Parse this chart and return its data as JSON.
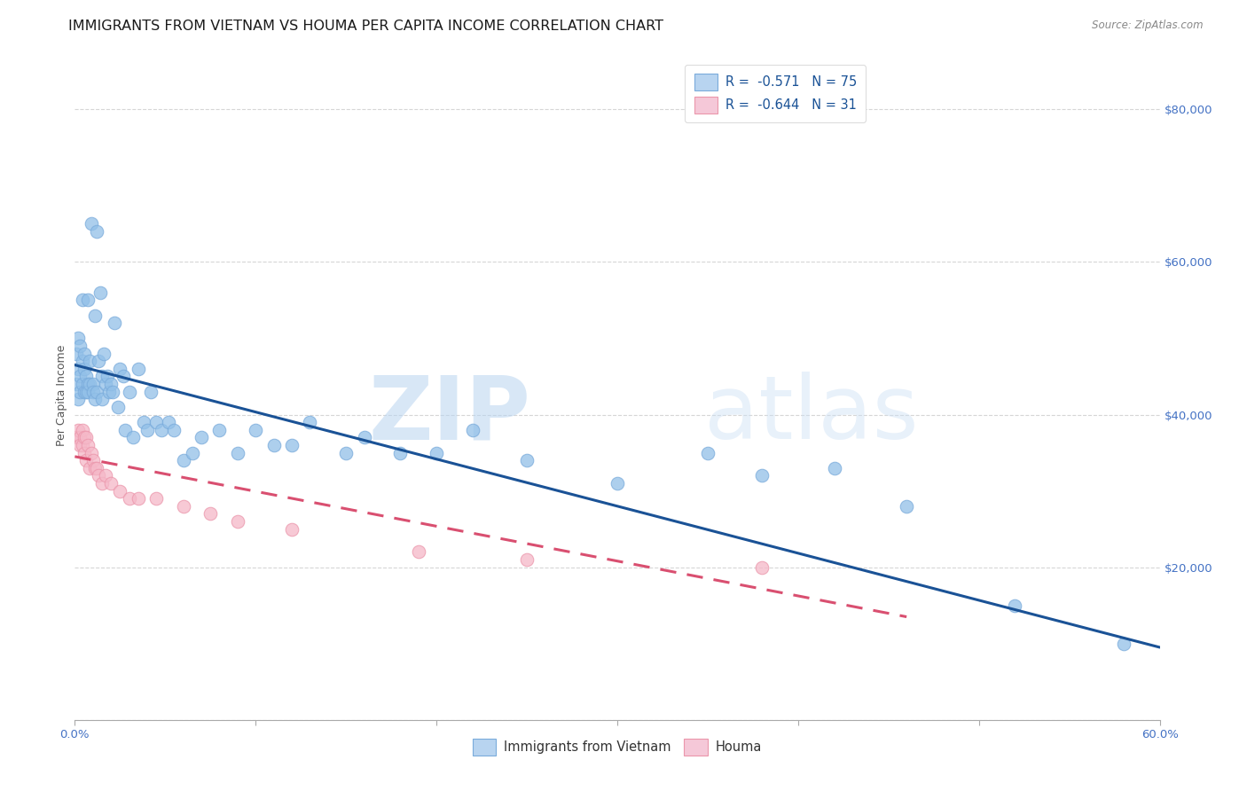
{
  "title": "IMMIGRANTS FROM VIETNAM VS HOUMA PER CAPITA INCOME CORRELATION CHART",
  "source": "Source: ZipAtlas.com",
  "ylabel": "Per Capita Income",
  "xlim": [
    0.0,
    0.6
  ],
  "ylim": [
    0,
    85000
  ],
  "ytick_positions": [
    0,
    20000,
    40000,
    60000,
    80000
  ],
  "ytick_labels": [
    "",
    "$20,000",
    "$40,000",
    "$60,000",
    "$80,000"
  ],
  "legend_labels": [
    "Immigrants from Vietnam",
    "Houma"
  ],
  "watermark_zip": "ZIP",
  "watermark_atlas": "atlas",
  "blue_scatter_x": [
    0.001,
    0.001,
    0.002,
    0.002,
    0.002,
    0.003,
    0.003,
    0.003,
    0.004,
    0.004,
    0.004,
    0.005,
    0.005,
    0.005,
    0.006,
    0.006,
    0.007,
    0.007,
    0.007,
    0.008,
    0.008,
    0.009,
    0.01,
    0.01,
    0.011,
    0.011,
    0.012,
    0.012,
    0.013,
    0.014,
    0.015,
    0.015,
    0.016,
    0.017,
    0.018,
    0.019,
    0.02,
    0.021,
    0.022,
    0.024,
    0.025,
    0.027,
    0.028,
    0.03,
    0.032,
    0.035,
    0.038,
    0.04,
    0.042,
    0.045,
    0.048,
    0.052,
    0.055,
    0.06,
    0.065,
    0.07,
    0.08,
    0.09,
    0.1,
    0.11,
    0.12,
    0.13,
    0.15,
    0.16,
    0.18,
    0.2,
    0.22,
    0.25,
    0.3,
    0.35,
    0.38,
    0.42,
    0.46,
    0.52,
    0.58
  ],
  "blue_scatter_y": [
    48000,
    44000,
    50000,
    46000,
    42000,
    49000,
    45000,
    43000,
    47000,
    44000,
    55000,
    43000,
    46000,
    48000,
    45000,
    43000,
    44000,
    55000,
    43000,
    44000,
    47000,
    65000,
    44000,
    43000,
    42000,
    53000,
    43000,
    64000,
    47000,
    56000,
    45000,
    42000,
    48000,
    44000,
    45000,
    43000,
    44000,
    43000,
    52000,
    41000,
    46000,
    45000,
    38000,
    43000,
    37000,
    46000,
    39000,
    38000,
    43000,
    39000,
    38000,
    39000,
    38000,
    34000,
    35000,
    37000,
    38000,
    35000,
    38000,
    36000,
    36000,
    39000,
    35000,
    37000,
    35000,
    35000,
    38000,
    34000,
    31000,
    35000,
    32000,
    33000,
    28000,
    15000,
    10000
  ],
  "pink_scatter_x": [
    0.001,
    0.002,
    0.003,
    0.003,
    0.004,
    0.004,
    0.005,
    0.005,
    0.006,
    0.006,
    0.007,
    0.008,
    0.009,
    0.01,
    0.011,
    0.012,
    0.013,
    0.015,
    0.017,
    0.02,
    0.025,
    0.03,
    0.035,
    0.045,
    0.06,
    0.075,
    0.09,
    0.12,
    0.19,
    0.25,
    0.38
  ],
  "pink_scatter_y": [
    37000,
    38000,
    37000,
    36000,
    36000,
    38000,
    35000,
    37000,
    34000,
    37000,
    36000,
    33000,
    35000,
    34000,
    33000,
    33000,
    32000,
    31000,
    32000,
    31000,
    30000,
    29000,
    29000,
    29000,
    28000,
    27000,
    26000,
    25000,
    22000,
    21000,
    20000
  ],
  "blue_line_x": [
    0.0,
    0.6
  ],
  "blue_line_y": [
    46500,
    9500
  ],
  "pink_line_x": [
    0.0,
    0.46
  ],
  "pink_line_y": [
    34500,
    13500
  ],
  "blue_dot_color": "#92c0e8",
  "blue_dot_edge": "#7aabdb",
  "pink_dot_color": "#f5b8c8",
  "pink_dot_edge": "#eb96ab",
  "blue_line_color": "#1a5296",
  "pink_line_color": "#d94f70",
  "background_color": "#ffffff",
  "grid_color": "#cccccc",
  "title_color": "#1a1a1a",
  "axis_label_color": "#555555",
  "tick_color": "#4472c4",
  "title_fontsize": 11.5,
  "ylabel_fontsize": 9,
  "tick_fontsize": 9.5
}
